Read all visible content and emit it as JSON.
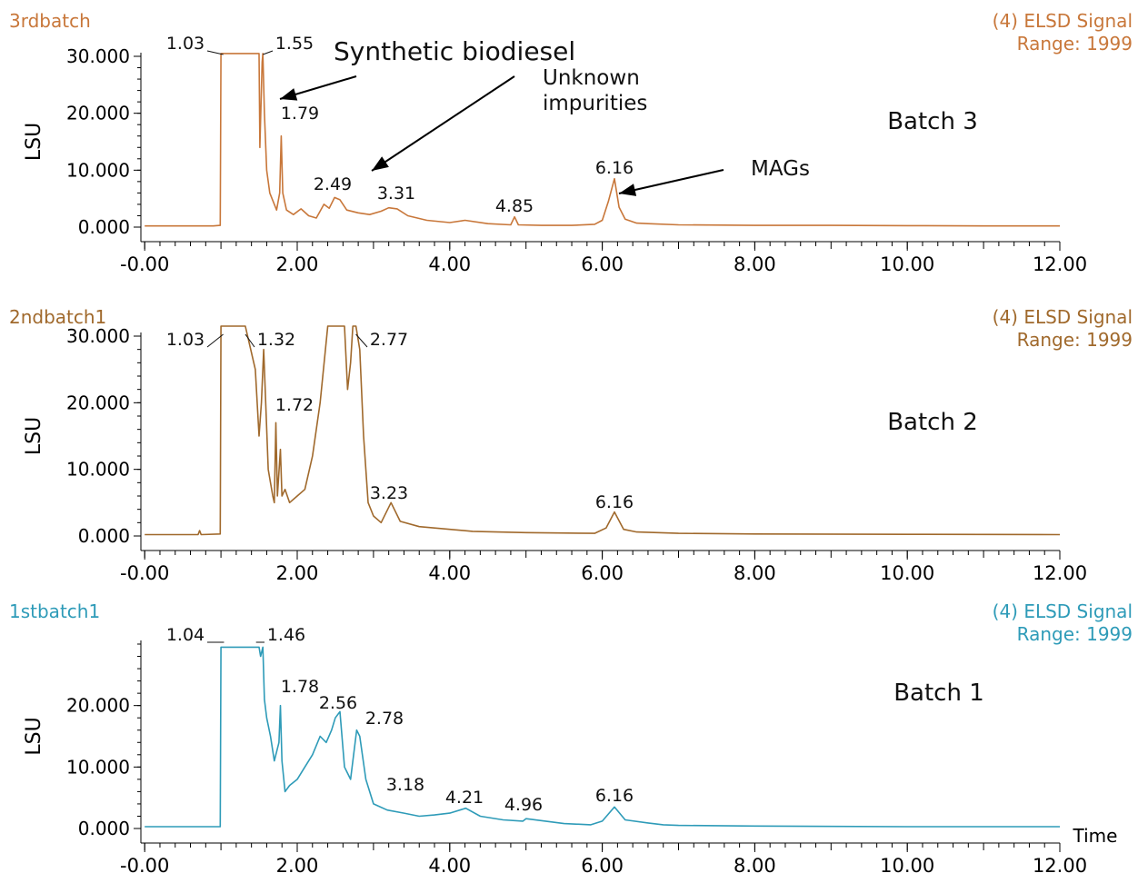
{
  "chart_data": [
    {
      "type": "line",
      "sample": "3rdbatch",
      "signal": "(4) ELSD Signal",
      "range": "Range: 1999",
      "batch_label": "Batch 3",
      "color": "#C8773A",
      "ylabel": "LSU",
      "xlabel": "",
      "xlim": [
        -0.05,
        12.0
      ],
      "ylim": [
        0,
        30
      ],
      "yticks": [
        0,
        10,
        20,
        30
      ],
      "ytick_labels": [
        "0.000",
        "10.000",
        "20.000",
        "30.000"
      ],
      "xticks": [
        0,
        2,
        4,
        6,
        8,
        10,
        12
      ],
      "xtick_labels": [
        "-0.00",
        "2.00",
        "4.00",
        "6.00",
        "8.00",
        "10.00",
        "12.00"
      ],
      "series": [
        {
          "x": [
            0,
            0.9,
            0.99,
            1.0,
            1.03,
            1.5,
            1.51,
            1.54,
            1.55,
            1.57,
            1.6,
            1.64,
            1.7,
            1.73,
            1.77,
            1.79,
            1.81,
            1.86,
            1.95,
            2.05,
            2.15,
            2.25,
            2.35,
            2.42,
            2.49,
            2.56,
            2.65,
            2.8,
            2.95,
            3.1,
            3.2,
            3.31,
            3.45,
            3.7,
            4.0,
            4.2,
            4.5,
            4.8,
            4.85,
            4.9,
            5.2,
            5.6,
            5.9,
            6.0,
            6.08,
            6.16,
            6.22,
            6.3,
            6.45,
            6.6,
            7.0,
            8.0,
            9.0,
            10.0,
            11.0,
            12.0
          ],
          "y": [
            0.2,
            0.2,
            0.3,
            30.5,
            30.5,
            30.5,
            14,
            29,
            30.5,
            20,
            10,
            6,
            4,
            3,
            6,
            16,
            6,
            3,
            2.2,
            3.2,
            2,
            1.6,
            4,
            3.3,
            5.2,
            4.8,
            3,
            2.5,
            2.2,
            2.8,
            3.4,
            3.2,
            2,
            1.2,
            0.8,
            1.2,
            0.6,
            0.4,
            1.8,
            0.4,
            0.3,
            0.3,
            0.5,
            1.2,
            4.5,
            8.5,
            3.5,
            1.4,
            0.7,
            0.6,
            0.4,
            0.3,
            0.3,
            0.25,
            0.2,
            0.2
          ]
        }
      ],
      "peaks": [
        "1.03",
        "1.55",
        "1.79",
        "2.49",
        "3.31",
        "4.85",
        "6.16"
      ],
      "annotations": [
        "Synthetic biodiesel",
        "Unknown",
        "impurities",
        "MAGs"
      ]
    },
    {
      "type": "line",
      "sample": "2ndbatch1",
      "signal": "(4) ELSD Signal",
      "range": "Range: 1999",
      "batch_label": "Batch 2",
      "color": "#A0692C",
      "ylabel": "LSU",
      "xlabel": "",
      "xlim": [
        -0.05,
        12.0
      ],
      "ylim": [
        0,
        30
      ],
      "yticks": [
        0,
        10,
        20,
        30
      ],
      "ytick_labels": [
        "0.000",
        "10.000",
        "20.000",
        "30.000"
      ],
      "xticks": [
        0,
        2,
        4,
        6,
        8,
        10,
        12
      ],
      "xtick_labels": [
        "-0.00",
        "2.00",
        "4.00",
        "6.00",
        "8.00",
        "10.00",
        "12.00"
      ],
      "series": [
        {
          "x": [
            0,
            0.7,
            0.72,
            0.74,
            0.99,
            1.0,
            1.03,
            1.32,
            1.45,
            1.5,
            1.53,
            1.56,
            1.62,
            1.68,
            1.7,
            1.72,
            1.74,
            1.78,
            1.8,
            1.84,
            1.9,
            2.0,
            2.1,
            2.2,
            2.3,
            2.4,
            2.5,
            2.62,
            2.66,
            2.7,
            2.73,
            2.77,
            2.82,
            2.87,
            2.93,
            3.0,
            3.1,
            3.23,
            3.35,
            3.6,
            4.0,
            4.3,
            5.0,
            5.9,
            6.05,
            6.16,
            6.28,
            6.45,
            7.0,
            8.0,
            10.0,
            12.0
          ],
          "y": [
            0.2,
            0.2,
            0.8,
            0.2,
            0.3,
            31.5,
            31.5,
            31.5,
            25,
            15,
            20,
            28,
            10,
            6,
            5,
            17,
            6,
            13,
            6,
            7,
            5,
            6,
            7,
            12,
            20,
            31.5,
            31.5,
            31.5,
            22,
            26,
            31.5,
            31.5,
            28,
            15,
            5,
            3,
            2,
            5,
            2.2,
            1.4,
            1,
            0.7,
            0.5,
            0.4,
            1.2,
            3.6,
            1,
            0.6,
            0.4,
            0.3,
            0.25,
            0.2
          ]
        }
      ],
      "peaks": [
        "1.03",
        "1.32",
        "1.72",
        "2.77",
        "3.23",
        "6.16"
      ],
      "annotations": []
    },
    {
      "type": "line",
      "sample": "1stbatch1",
      "signal": "(4) ELSD Signal",
      "range": "Range: 1999",
      "batch_label": "Batch 1",
      "color": "#2E9BB8",
      "ylabel": "LSU",
      "xlabel": "Time",
      "xlim": [
        -0.05,
        12.0
      ],
      "ylim": [
        0,
        30
      ],
      "yticks": [
        0,
        10,
        20
      ],
      "ytick_labels": [
        "0.000",
        "10.000",
        "20.000"
      ],
      "xticks": [
        0,
        2,
        4,
        6,
        8,
        10,
        12
      ],
      "xtick_labels": [
        "-0.00",
        "2.00",
        "4.00",
        "6.00",
        "8.00",
        "10.00",
        "12.00"
      ],
      "series": [
        {
          "x": [
            0,
            0.99,
            1.0,
            1.04,
            1.46,
            1.5,
            1.52,
            1.55,
            1.57,
            1.6,
            1.65,
            1.7,
            1.76,
            1.78,
            1.8,
            1.84,
            1.9,
            2.0,
            2.1,
            2.2,
            2.3,
            2.38,
            2.45,
            2.5,
            2.56,
            2.62,
            2.7,
            2.78,
            2.82,
            2.9,
            3.0,
            3.18,
            3.4,
            3.6,
            3.8,
            4.0,
            4.21,
            4.4,
            4.7,
            4.96,
            5.0,
            5.5,
            5.85,
            6.0,
            6.16,
            6.3,
            6.6,
            6.8,
            7.0,
            8.0,
            10.0,
            12.0
          ],
          "y": [
            0.3,
            0.3,
            29.5,
            29.5,
            29.5,
            29.5,
            28,
            29.5,
            21,
            18,
            15,
            11,
            14,
            20,
            11,
            6,
            7,
            8,
            10,
            12,
            15,
            14,
            16,
            18,
            19,
            10,
            8,
            16,
            15,
            8,
            4,
            3,
            2.5,
            2,
            2.2,
            2.5,
            3.3,
            2,
            1.4,
            1.2,
            1.6,
            0.8,
            0.6,
            1.2,
            3.5,
            1.4,
            0.9,
            0.6,
            0.5,
            0.4,
            0.3,
            0.3
          ]
        }
      ],
      "peaks": [
        "1.04",
        "1.46",
        "1.78",
        "2.56",
        "2.78",
        "3.18",
        "4.21",
        "4.96",
        "6.16"
      ],
      "annotations": []
    }
  ]
}
